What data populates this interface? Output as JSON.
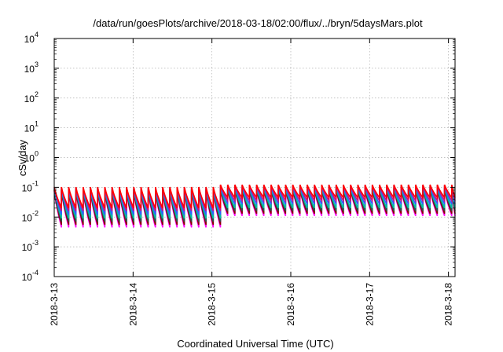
{
  "chart_data": {
    "type": "line",
    "title": "/data/run/goesPlots/archive/2018-03-18/02:00/flux/../bryn/5daysMars.plot",
    "xlabel": "Coordinated Universal Time (UTC)",
    "ylabel": "cSv/day",
    "y_scale": "log",
    "ylim": [
      0.0001,
      10000
    ],
    "xlim": [
      "2018-03-13",
      "2018-03-18 02:00"
    ],
    "grid": true,
    "legend": "none",
    "x_ticks": [
      "2018-3-13",
      "2018-3-14",
      "2018-3-15",
      "2018-3-16",
      "2018-3-17",
      "2018-3-18"
    ],
    "y_ticks": [
      {
        "value": 0.0001,
        "base": "10",
        "exp": "-4"
      },
      {
        "value": 0.001,
        "base": "10",
        "exp": "-3"
      },
      {
        "value": 0.01,
        "base": "10",
        "exp": "-2"
      },
      {
        "value": 0.1,
        "base": "10",
        "exp": "-1"
      },
      {
        "value": 1,
        "base": "10",
        "exp": "0"
      },
      {
        "value": 10,
        "base": "10",
        "exp": "1"
      },
      {
        "value": 100,
        "base": "10",
        "exp": "2"
      },
      {
        "value": 1000,
        "base": "10",
        "exp": "3"
      },
      {
        "value": 10000,
        "base": "10",
        "exp": "4"
      }
    ],
    "sawtooth_period_hours": 2.2,
    "series": [
      {
        "color": "#ff00ff",
        "peak": 0.075,
        "trough": 0.0045,
        "peak_late": 0.085,
        "trough_late": 0.011
      },
      {
        "color": "#8b0000",
        "peak": 0.08,
        "trough": 0.0055,
        "peak_late": 0.09,
        "trough_late": 0.013
      },
      {
        "color": "#2f4f4f",
        "peak": 0.085,
        "trough": 0.007,
        "peak_late": 0.095,
        "trough_late": 0.016
      },
      {
        "color": "#00bfa5",
        "peak": 0.09,
        "trough": 0.009,
        "peak_late": 0.1,
        "trough_late": 0.02
      },
      {
        "color": "#3060ff",
        "peak": 0.095,
        "trough": 0.012,
        "peak_late": 0.11,
        "trough_late": 0.027
      },
      {
        "color": "#c71585",
        "peak": 0.1,
        "trough": 0.016,
        "peak_late": 0.12,
        "trough_late": 0.035
      },
      {
        "color": "#ff0000",
        "peak": 0.102,
        "trough": 0.02,
        "peak_late": 0.122,
        "trough_late": 0.045
      }
    ]
  }
}
